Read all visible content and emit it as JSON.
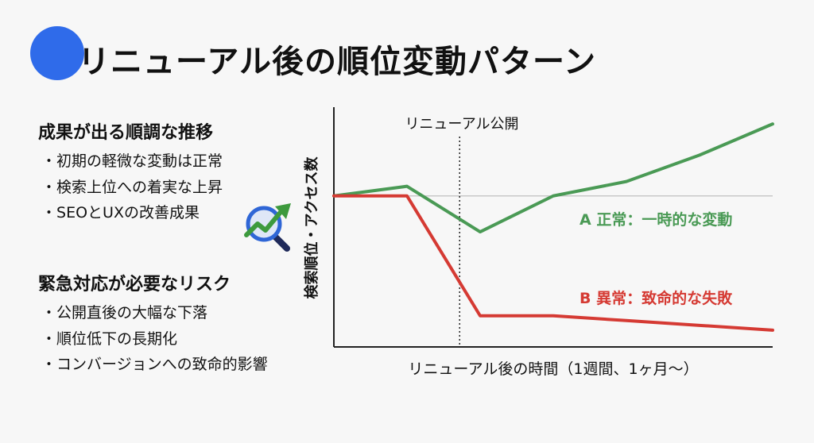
{
  "header": {
    "title": "リニューアル後の順位変動パターン"
  },
  "sections": {
    "good": {
      "heading": "成果が出る順調な推移",
      "items": [
        "初期の軽微な変動は正常",
        "検索上位への着実な上昇",
        "SEOとUXの改善成果"
      ]
    },
    "risk": {
      "heading": "緊急対応が必要なリスク",
      "items": [
        "公開直後の大幅な下落",
        "順位低下の長期化",
        "コンバージョンへの致命的影響"
      ]
    }
  },
  "icons": {
    "magnifier": "magnifier-trend-up-icon"
  },
  "colors": {
    "title_circle": "#2f6bea",
    "series_a": "#4a9a55",
    "series_b": "#d53a33",
    "axis": "#222222",
    "baseline": "#c9c9c9"
  },
  "chart_data": {
    "type": "line",
    "xlabel": "リニューアル後の時間（1週間、1ヶ月〜）",
    "ylabel": "検索順位・アクセス数",
    "xlim": [
      0,
      6
    ],
    "ylim": [
      0,
      10
    ],
    "grid": false,
    "baseline_y": 6.3,
    "annotation": {
      "label": "リニューアル公開",
      "x": 1.72
    },
    "series": [
      {
        "name": "A  正常：一時的な変動",
        "x": [
          0,
          1.0,
          2.0,
          3.0,
          4.0,
          5.0,
          6.0
        ],
        "y": [
          6.3,
          6.7,
          4.8,
          6.3,
          6.9,
          8.0,
          9.3
        ]
      },
      {
        "name": "B  異常：致命的な失敗",
        "x": [
          0,
          1.0,
          2.0,
          3.0,
          4.0,
          5.0,
          6.0
        ],
        "y": [
          6.3,
          6.3,
          1.3,
          1.3,
          1.1,
          0.9,
          0.7
        ]
      }
    ]
  }
}
